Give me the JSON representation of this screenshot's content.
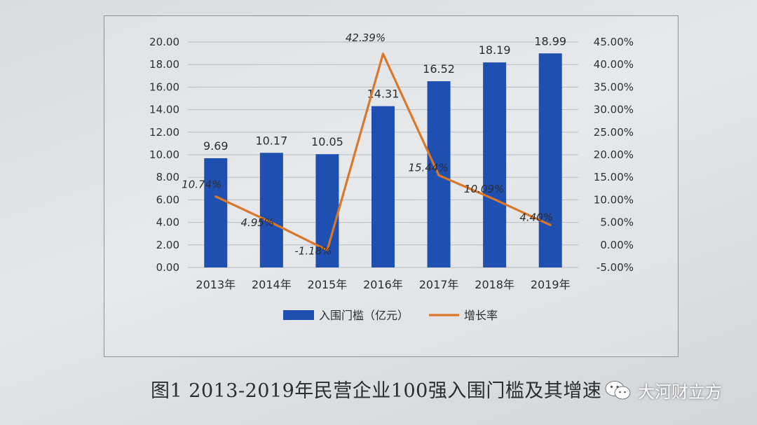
{
  "chart_data": {
    "type": "bar+line",
    "categories": [
      "2013年",
      "2014年",
      "2015年",
      "2016年",
      "2017年",
      "2018年",
      "2019年"
    ],
    "series": [
      {
        "name": "入围门槛（亿元）",
        "type": "bar",
        "axis": "left",
        "color": "#1f4fb0",
        "values": [
          9.69,
          10.17,
          10.05,
          14.31,
          16.52,
          18.19,
          18.99
        ],
        "labels": [
          "9.69",
          "10.17",
          "10.05",
          "14.31",
          "16.52",
          "18.19",
          "18.99"
        ]
      },
      {
        "name": "增长率",
        "type": "line",
        "axis": "right",
        "color": "#d9772b",
        "values": [
          10.74,
          4.95,
          -1.18,
          42.39,
          15.44,
          10.09,
          4.4
        ],
        "labels": [
          "10.74%",
          "4.95%",
          "-1.18%",
          "42.39%",
          "15.44%",
          "10.09%",
          "4.40%"
        ]
      }
    ],
    "y_left": {
      "ylim": [
        0,
        20
      ],
      "ticks": [
        "0.00",
        "2.00",
        "4.00",
        "6.00",
        "8.00",
        "10.00",
        "12.00",
        "14.00",
        "16.00",
        "18.00",
        "20.00"
      ]
    },
    "y_right": {
      "ylim": [
        -5,
        45
      ],
      "ticks": [
        "-5.00%",
        "0.00%",
        "5.00%",
        "10.00%",
        "15.00%",
        "20.00%",
        "25.00%",
        "30.00%",
        "35.00%",
        "40.00%",
        "45.00%"
      ]
    },
    "grid": true,
    "legend_position": "bottom"
  },
  "caption": "图1  2013-2019年民营企业100强入围门槛及其增速",
  "watermark": {
    "text": "大河财立方",
    "icon": "wechat-icon"
  }
}
